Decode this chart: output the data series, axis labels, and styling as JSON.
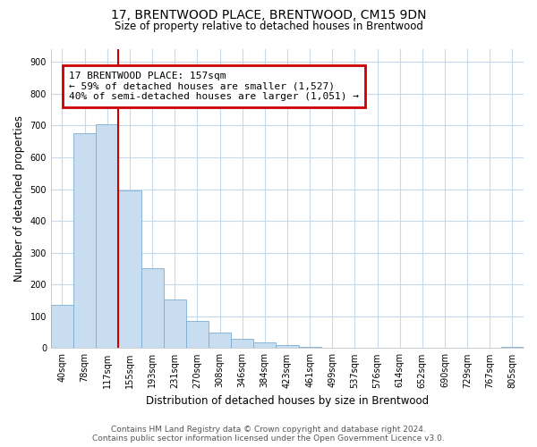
{
  "title": "17, BRENTWOOD PLACE, BRENTWOOD, CM15 9DN",
  "subtitle": "Size of property relative to detached houses in Brentwood",
  "xlabel": "Distribution of detached houses by size in Brentwood",
  "ylabel": "Number of detached properties",
  "bar_labels": [
    "40sqm",
    "78sqm",
    "117sqm",
    "155sqm",
    "193sqm",
    "231sqm",
    "270sqm",
    "308sqm",
    "346sqm",
    "384sqm",
    "423sqm",
    "461sqm",
    "499sqm",
    "537sqm",
    "576sqm",
    "614sqm",
    "652sqm",
    "690sqm",
    "729sqm",
    "767sqm",
    "805sqm"
  ],
  "bar_values": [
    135,
    675,
    705,
    495,
    252,
    152,
    85,
    50,
    28,
    18,
    10,
    5,
    2,
    0,
    0,
    0,
    0,
    0,
    0,
    0,
    3
  ],
  "bar_color": "#c8ddf0",
  "bar_edgecolor": "#7badd4",
  "vline_color": "#cc0000",
  "annotation_text": "17 BRENTWOOD PLACE: 157sqm\n← 59% of detached houses are smaller (1,527)\n40% of semi-detached houses are larger (1,051) →",
  "annotation_box_edgecolor": "#cc0000",
  "ylim": [
    0,
    940
  ],
  "yticks": [
    0,
    100,
    200,
    300,
    400,
    500,
    600,
    700,
    800,
    900
  ],
  "footer": "Contains HM Land Registry data © Crown copyright and database right 2024.\nContains public sector information licensed under the Open Government Licence v3.0.",
  "bg_color": "#ffffff",
  "grid_color": "#c8d8ec"
}
